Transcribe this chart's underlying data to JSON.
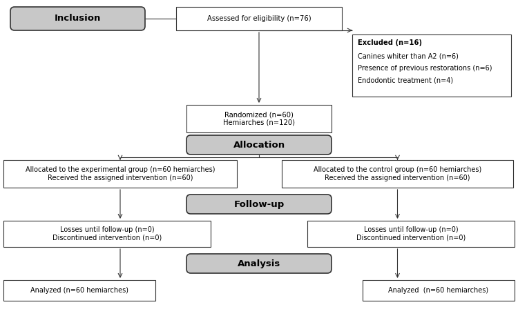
{
  "bg_color": "#ffffff",
  "box_edge_color": "#333333",
  "box_face_white": "#ffffff",
  "box_face_gray": "#c8c8c8",
  "text_color": "#000000",
  "inclusion_label": "Inclusion",
  "assessed_text": "Assessed for eligibility (n=76)",
  "excluded_title": "Excluded (n=16)",
  "excluded_items": [
    "Canines whiter than A2 (n=6)",
    "Presence of previous restorations (n=6)",
    "Endodontic treatment (n=4)"
  ],
  "randomized_text": "Randomized (n=60)\nHemiarches (n=120)",
  "allocation_label": "Allocation",
  "left_alloc_text": "Allocated to the experimental group (n=60 hemiarches)\nReceived the assigned intervention (n=60)",
  "right_alloc_text": "Allocated to the control group (n=60 hemiarches)\nReceived the assigned intervention (n=60)",
  "followup_label": "Follow-up",
  "left_followup_text": "Losses until follow-up (n=0)\nDiscontinued intervention (n=0)",
  "right_followup_text": "Losses until follow-up (n=0)\nDiscontinued intervention (n=0)",
  "analysis_label": "Analysis",
  "left_analysis_text": "Analyzed (n=60 hemiarches)",
  "right_analysis_text": "Analyzed  (n=60 hemiarches)"
}
